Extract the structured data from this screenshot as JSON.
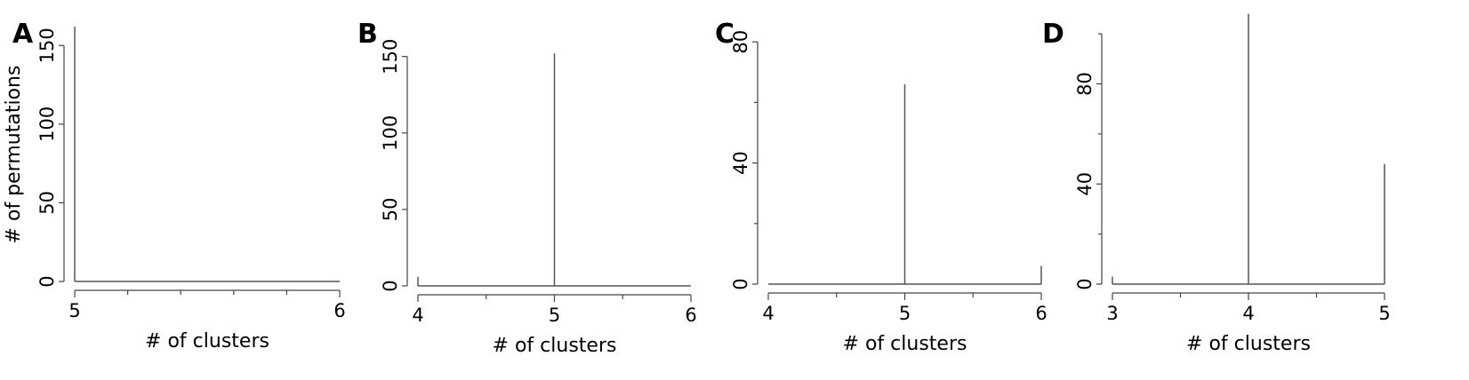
{
  "chart_data": [
    {
      "panel": "A",
      "type": "bar",
      "x": [
        5,
        6
      ],
      "values": [
        162,
        0
      ],
      "xlim": [
        5,
        6
      ],
      "ylim": [
        0,
        165
      ],
      "xticks": [
        "5",
        "6"
      ],
      "xminor": [
        5.2,
        5.4,
        5.6,
        5.8
      ],
      "yticks": [
        "0",
        "50",
        "100",
        "150"
      ],
      "xlabel": "# of clusters",
      "ylabel": "# of permutations"
    },
    {
      "panel": "B",
      "type": "bar",
      "x": [
        4,
        5,
        6
      ],
      "values": [
        6,
        152,
        0
      ],
      "xlim": [
        4,
        6
      ],
      "ylim": [
        0,
        165
      ],
      "xticks": [
        "4",
        "5",
        "6"
      ],
      "xminor": [
        4.5,
        5.5
      ],
      "yticks": [
        "0",
        "50",
        "100",
        "150"
      ],
      "xlabel": "# of clusters",
      "ylabel": ""
    },
    {
      "panel": "C",
      "type": "bar",
      "x": [
        4,
        5,
        6
      ],
      "values": [
        0,
        66,
        6
      ],
      "xlim": [
        4,
        6
      ],
      "ylim": [
        0,
        90
      ],
      "xticks": [
        "4",
        "5",
        "6"
      ],
      "xminor": [
        4.5,
        5.5
      ],
      "yticks": [
        "0",
        "40",
        "80"
      ],
      "yminor": [
        20,
        60
      ],
      "xlabel": "# of clusters",
      "ylabel": ""
    },
    {
      "panel": "D",
      "type": "bar",
      "x": [
        3,
        4,
        5
      ],
      "values": [
        3,
        108,
        48
      ],
      "xlim": [
        3,
        5
      ],
      "ylim": [
        0,
        100
      ],
      "xticks": [
        "3",
        "4",
        "5"
      ],
      "xminor": [
        3.5,
        4.5
      ],
      "yticks": [
        "0",
        "40",
        "80"
      ],
      "yminor": [
        20,
        60,
        100
      ],
      "xlabel": "# of clusters",
      "ylabel": ""
    }
  ]
}
